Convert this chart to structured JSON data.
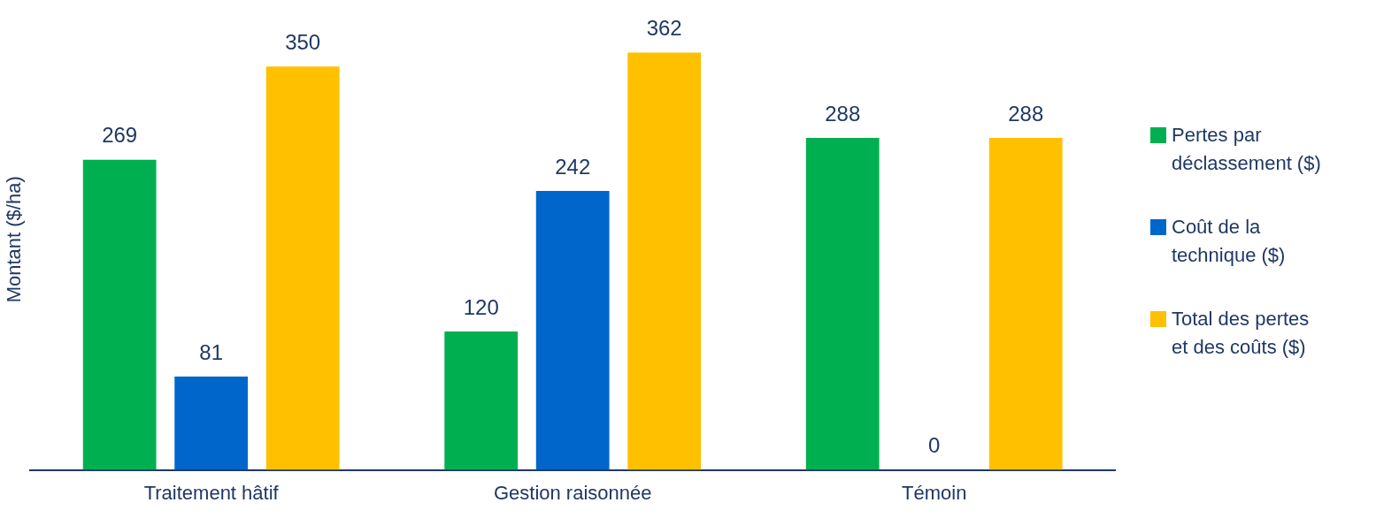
{
  "chart_data": {
    "type": "bar",
    "ylabel": "Montant ($/ha)",
    "categories": [
      "Traitement hâtif",
      "Gestion raisonnée",
      "Témoin"
    ],
    "series": [
      {
        "name": "Pertes par déclassement ($)",
        "color": "#00b050",
        "values": [
          269,
          120,
          288
        ]
      },
      {
        "name": "Coût de la technique ($)",
        "color": "#0066cc",
        "values": [
          81,
          242,
          0
        ]
      },
      {
        "name": "Total des pertes et des coûts ($)",
        "color": "#ffc000",
        "values": [
          350,
          362,
          288
        ]
      }
    ],
    "data_labels": true,
    "legend": "right",
    "grid": false
  }
}
